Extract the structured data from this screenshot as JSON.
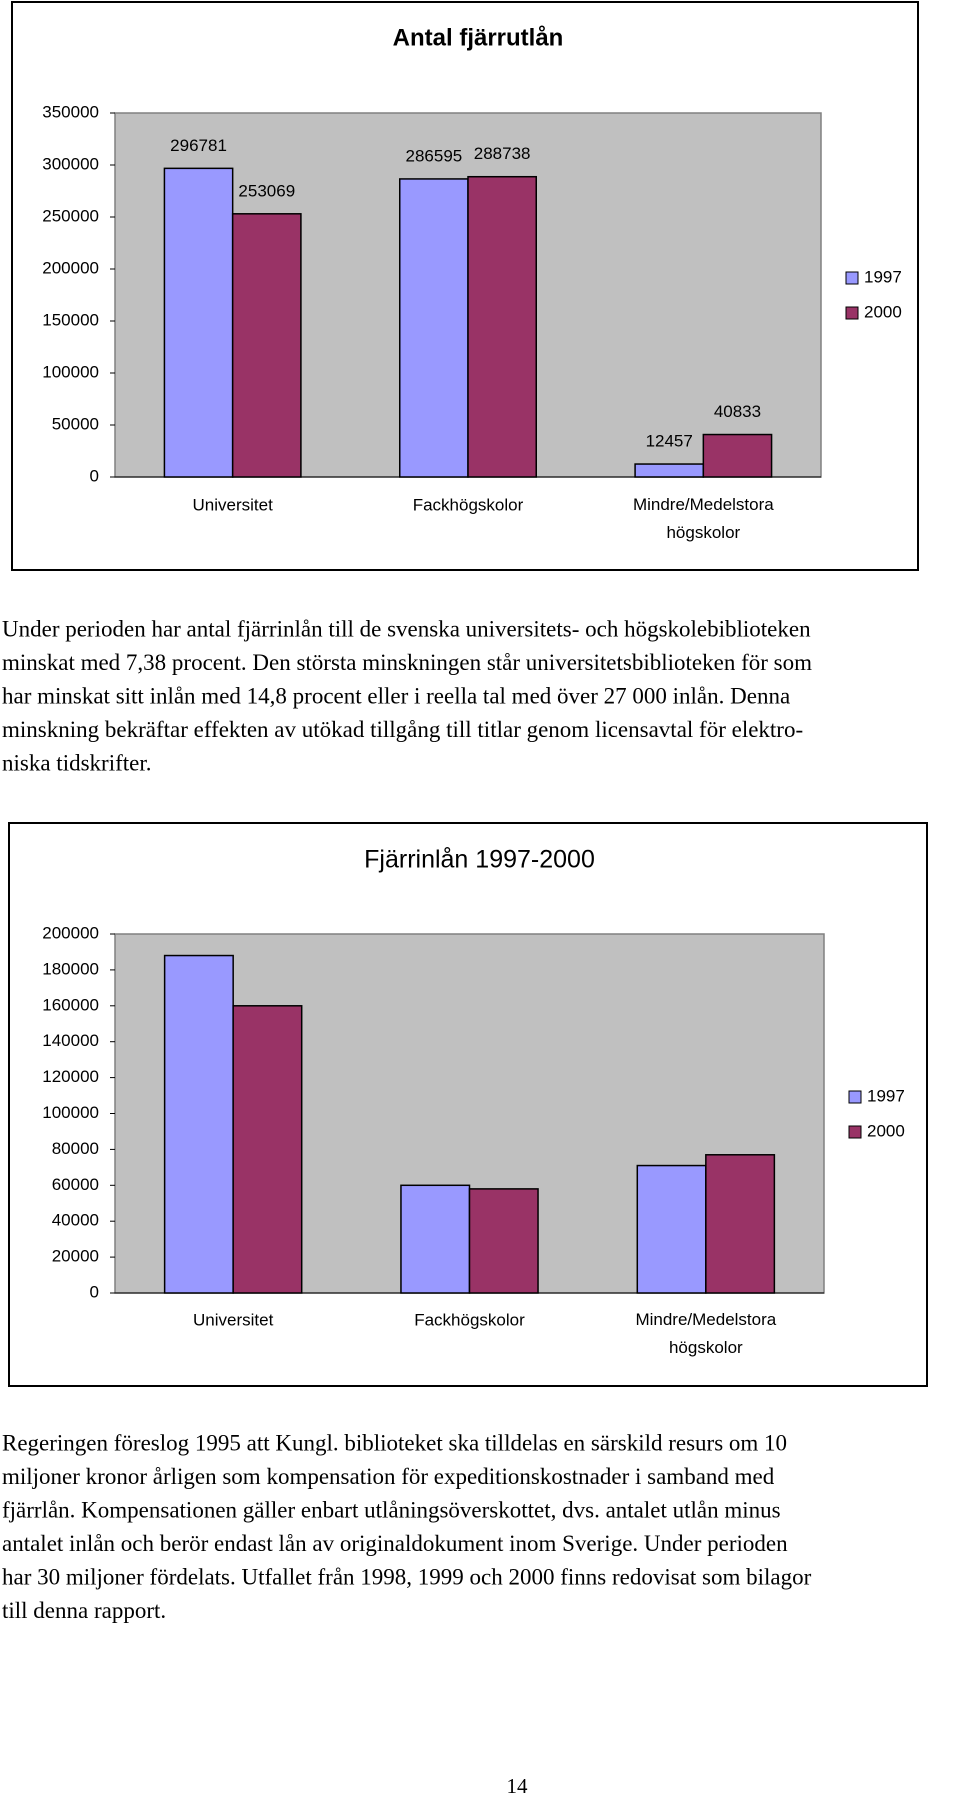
{
  "chart_data": [
    {
      "type": "bar",
      "title": "Antal fjärrutlån",
      "categories": [
        "Universitet",
        "Fackhögskolor",
        "Mindre/Medelstora högskolor"
      ],
      "series": [
        {
          "name": "1997",
          "color": "#9999ff",
          "values": [
            296781,
            286595,
            12457
          ]
        },
        {
          "name": "2000",
          "color": "#993366",
          "values": [
            253069,
            288738,
            40833
          ]
        }
      ],
      "ylim": [
        0,
        350000
      ],
      "yticks": [
        0,
        50000,
        100000,
        150000,
        200000,
        250000,
        300000,
        350000
      ],
      "data_labels": true,
      "legend": "right"
    },
    {
      "type": "bar",
      "title": "Fjärrinlån 1997-2000",
      "categories": [
        "Universitet",
        "Fackhögskolor",
        "Mindre/Medelstora högskolor"
      ],
      "series": [
        {
          "name": "1997",
          "color": "#9999ff",
          "values": [
            188000,
            60000,
            71000
          ]
        },
        {
          "name": "2000",
          "color": "#993366",
          "values": [
            160000,
            58000,
            77000
          ]
        }
      ],
      "ylim": [
        0,
        200000
      ],
      "yticks": [
        0,
        20000,
        40000,
        60000,
        80000,
        100000,
        120000,
        140000,
        160000,
        180000,
        200000
      ],
      "data_labels": false,
      "legend": "right"
    }
  ],
  "paragraphs": [
    [
      "Under perioden har antal fjärrinlån till de svenska universitets- och högskolebiblioteken",
      "minskat med 7,38 procent. Den största minskningen står universitetsbiblioteken för som",
      "har minskat sitt inlån med 14,8 procent eller i reella tal med över 27 000 inlån. Denna",
      "minskning bekräftar effekten av utökad tillgång till titlar genom licensavtal för elektro-",
      "niska tidskrifter."
    ],
    [
      "Regeringen föreslog 1995 att Kungl. biblioteket ska tilldelas en särskild resurs om 10",
      "miljoner kronor årligen som kompensation för expeditionskostnader i samband med",
      "fjärrlån. Kompensationen gäller enbart utlåningsöverskottet, dvs. antalet utlån minus",
      "antalet inlån och berör endast lån av originaldokument inom Sverige. Under perioden",
      "har 30 miljoner fördelats. Utfallet från 1998, 1999 och 2000 finns redovisat som bilagor",
      "till denna rapport."
    ]
  ],
  "page_number": "14"
}
